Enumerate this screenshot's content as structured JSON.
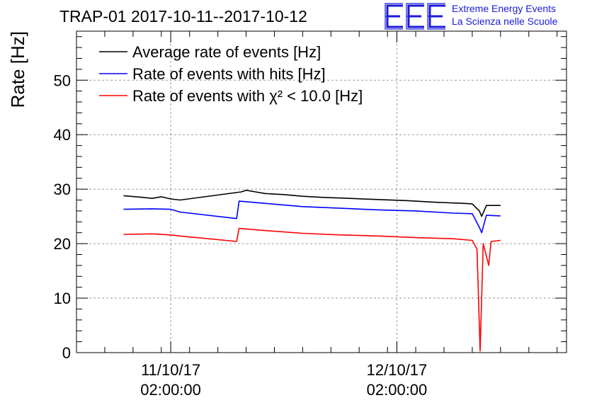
{
  "header": {
    "title": "TRAP-01 2017-10-11--2017-10-12",
    "logo_text": "EEE",
    "logo_line1": "Extreme Energy Events",
    "logo_line2": "La Scienza nelle Scuole"
  },
  "chart_data": {
    "type": "line",
    "title": "TRAP-01 2017-10-11--2017-10-12",
    "ylabel": "Rate [Hz]",
    "xlabel": "",
    "ylim": [
      0,
      59
    ],
    "xlim": [
      "2017-10-10 16:00",
      "2017-10-12 20:00"
    ],
    "grid": true,
    "legend_position": "top-left",
    "y_ticks": [
      "0",
      "10",
      "20",
      "30",
      "40",
      "50"
    ],
    "x_ticks": [
      {
        "x": "2017-10-11 02:00",
        "date": "11/10/17",
        "time": "02:00:00"
      },
      {
        "x": "2017-10-12 02:00",
        "date": "12/10/17",
        "time": "02:00:00"
      }
    ],
    "series": [
      {
        "name": "Average rate of events [Hz]",
        "color": "#000000",
        "points": [
          [
            "2017-10-10 21:00",
            28.8
          ],
          [
            "2017-10-10 23:00",
            28.5
          ],
          [
            "2017-10-11 00:00",
            28.3
          ],
          [
            "2017-10-11 01:00",
            28.6
          ],
          [
            "2017-10-11 02:00",
            28.2
          ],
          [
            "2017-10-11 03:00",
            28.0
          ],
          [
            "2017-10-11 09:30",
            29.5
          ],
          [
            "2017-10-11 10:00",
            29.8
          ],
          [
            "2017-10-11 11:00",
            29.5
          ],
          [
            "2017-10-11 12:00",
            29.2
          ],
          [
            "2017-10-11 14:00",
            29.0
          ],
          [
            "2017-10-11 16:00",
            28.7
          ],
          [
            "2017-10-11 18:00",
            28.5
          ],
          [
            "2017-10-11 21:00",
            28.3
          ],
          [
            "2017-10-12 00:00",
            28.1
          ],
          [
            "2017-10-12 03:00",
            27.9
          ],
          [
            "2017-10-12 06:00",
            27.6
          ],
          [
            "2017-10-12 09:00",
            27.4
          ],
          [
            "2017-10-12 10:00",
            27.3
          ],
          [
            "2017-10-12 10:45",
            26.0
          ],
          [
            "2017-10-12 11:00",
            25.0
          ],
          [
            "2017-10-12 11:30",
            27.0
          ],
          [
            "2017-10-12 13:00",
            27.0
          ]
        ]
      },
      {
        "name": "Rate of events with hits [Hz]",
        "color": "#0000ff",
        "points": [
          [
            "2017-10-10 21:00",
            26.3
          ],
          [
            "2017-10-11 00:00",
            26.4
          ],
          [
            "2017-10-11 02:00",
            26.3
          ],
          [
            "2017-10-11 03:00",
            25.8
          ],
          [
            "2017-10-11 09:00",
            24.6
          ],
          [
            "2017-10-11 09:15",
            27.8
          ],
          [
            "2017-10-11 12:00",
            27.4
          ],
          [
            "2017-10-11 16:00",
            26.8
          ],
          [
            "2017-10-11 20:00",
            26.5
          ],
          [
            "2017-10-12 00:00",
            26.2
          ],
          [
            "2017-10-12 04:00",
            26.0
          ],
          [
            "2017-10-12 08:00",
            25.6
          ],
          [
            "2017-10-12 10:00",
            25.5
          ],
          [
            "2017-10-12 10:45",
            23.0
          ],
          [
            "2017-10-12 11:00",
            22.0
          ],
          [
            "2017-10-12 11:30",
            25.2
          ],
          [
            "2017-10-12 13:00",
            25.1
          ]
        ]
      },
      {
        "name": "Rate of events with χ² < 10.0 [Hz]",
        "color": "#ff0000",
        "points": [
          [
            "2017-10-10 21:00",
            21.7
          ],
          [
            "2017-10-11 00:00",
            21.8
          ],
          [
            "2017-10-11 02:00",
            21.6
          ],
          [
            "2017-10-11 03:00",
            21.4
          ],
          [
            "2017-10-11 09:00",
            20.4
          ],
          [
            "2017-10-11 09:15",
            22.8
          ],
          [
            "2017-10-11 12:00",
            22.4
          ],
          [
            "2017-10-11 16:00",
            21.9
          ],
          [
            "2017-10-11 20:00",
            21.6
          ],
          [
            "2017-10-12 00:00",
            21.4
          ],
          [
            "2017-10-12 04:00",
            21.1
          ],
          [
            "2017-10-12 08:00",
            20.9
          ],
          [
            "2017-10-12 10:00",
            20.6
          ],
          [
            "2017-10-12 10:30",
            19.0
          ],
          [
            "2017-10-12 10:50",
            0.3
          ],
          [
            "2017-10-12 11:10",
            20.0
          ],
          [
            "2017-10-12 11:45",
            16.0
          ],
          [
            "2017-10-12 12:00",
            20.4
          ],
          [
            "2017-10-12 13:00",
            20.6
          ]
        ]
      }
    ]
  }
}
